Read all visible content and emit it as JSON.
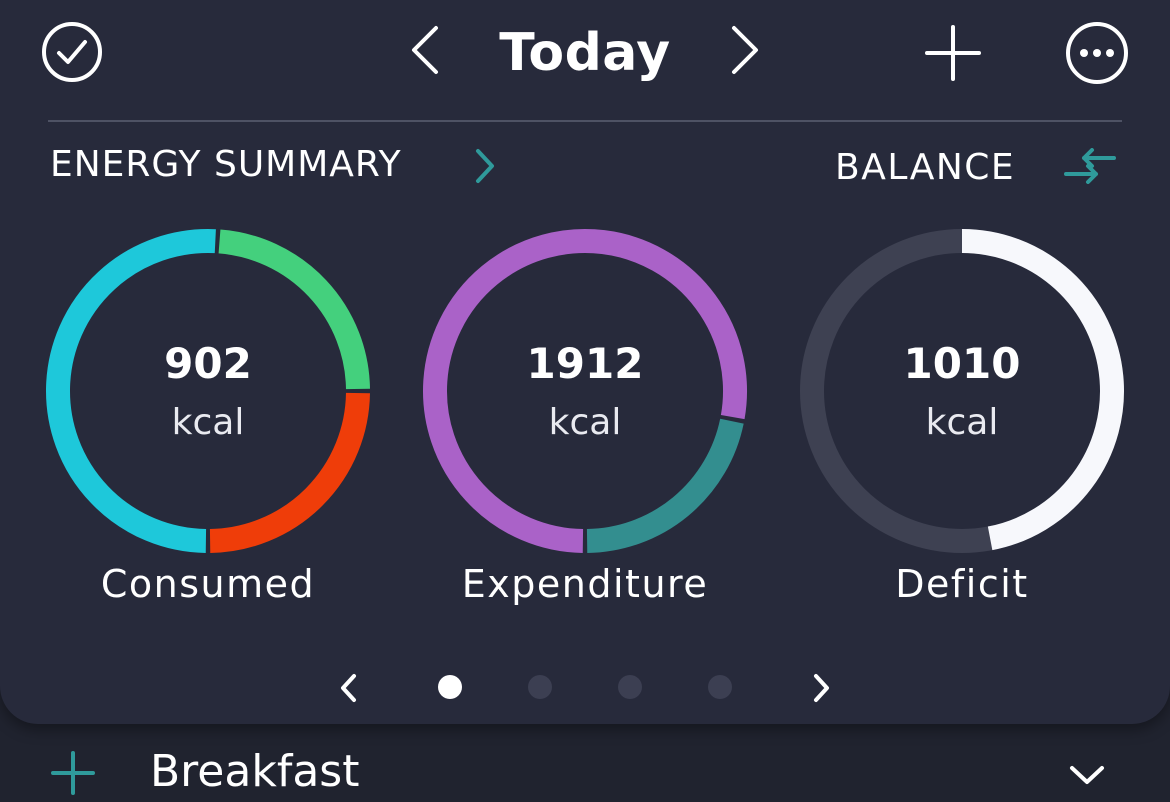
{
  "header": {
    "title": "Today",
    "icons": {
      "complete": "check-circle-icon",
      "prev": "chevron-left-icon",
      "next": "chevron-right-icon",
      "add": "plus-icon",
      "more": "more-icon"
    }
  },
  "summary": {
    "title": "ENERGY SUMMARY",
    "balance_label": "BALANCE"
  },
  "rings": [
    {
      "value": "902",
      "unit": "kcal",
      "label": "Consumed",
      "segments": [
        {
          "color": "#1ec8da",
          "share": 0.51
        },
        {
          "color": "#44d07d",
          "share": 0.24
        },
        {
          "color": "#ef3d09",
          "share": 0.25
        }
      ]
    },
    {
      "value": "1912",
      "unit": "kcal",
      "label": "Expenditure",
      "segments": [
        {
          "color": "#aa62c8",
          "share": 0.78
        },
        {
          "color": "#338e8f",
          "share": 0.22
        }
      ]
    },
    {
      "value": "1010",
      "unit": "kcal",
      "label": "Deficit",
      "progress": 0.47,
      "colors": {
        "fill": "#f7f8fc",
        "track": "#3e4152"
      }
    }
  ],
  "pager": {
    "pages": 4,
    "active": 0
  },
  "meal": {
    "title": "Breakfast"
  },
  "colors": {
    "background": "#20232f",
    "card": "#272a3b",
    "accent": "#2f9a9b"
  }
}
